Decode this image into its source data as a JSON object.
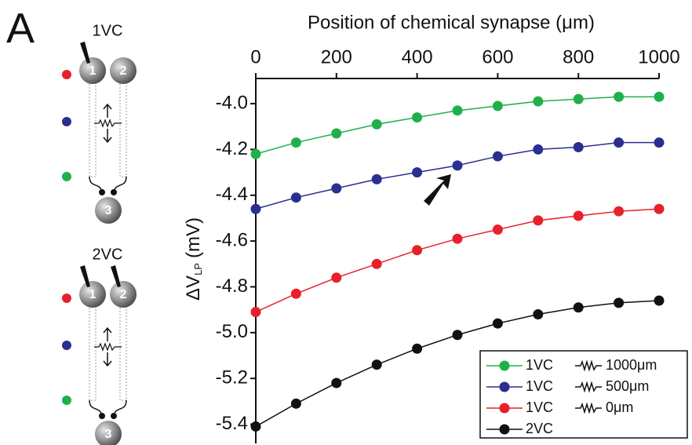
{
  "panel_label": "A",
  "diagrams": [
    {
      "label": "1VC",
      "neurons": [
        "1",
        "2",
        "3"
      ]
    },
    {
      "label": "2VC",
      "neurons": [
        "1",
        "2",
        "3"
      ]
    }
  ],
  "chart_data": {
    "type": "line",
    "title": "Position of chemical synapse (μm)",
    "y_label": {
      "main": "ΔV",
      "sub": "LP",
      "unit": "(mV)"
    },
    "x": [
      0,
      100,
      200,
      300,
      400,
      500,
      600,
      700,
      800,
      900,
      1000
    ],
    "series": [
      {
        "name": "1VC",
        "color": "#1fb04b",
        "values": [
          -4.22,
          -4.17,
          -4.13,
          -4.09,
          -4.06,
          -4.03,
          -4.01,
          -3.99,
          -3.98,
          -3.97,
          -3.97
        ]
      },
      {
        "name": "1VC",
        "color": "#2b2f8f",
        "values": [
          -4.46,
          -4.41,
          -4.37,
          -4.33,
          -4.3,
          -4.27,
          -4.23,
          -4.2,
          -4.19,
          -4.17,
          -4.17
        ]
      },
      {
        "name": "1VC",
        "color": "#e8202a",
        "values": [
          -4.91,
          -4.83,
          -4.76,
          -4.7,
          -4.64,
          -4.59,
          -4.55,
          -4.51,
          -4.49,
          -4.47,
          -4.46
        ]
      },
      {
        "name": "2VC",
        "color": "#111111",
        "values": [
          -5.41,
          -5.31,
          -5.22,
          -5.14,
          -5.07,
          -5.01,
          -4.96,
          -4.92,
          -4.89,
          -4.87,
          -4.86
        ]
      }
    ],
    "legend_extra": [
      "1000μm",
      "500μm",
      "0μm"
    ],
    "legend": "lower right",
    "xlim": [
      0,
      1000
    ],
    "xticks": [
      0,
      200,
      400,
      600,
      800,
      1000
    ],
    "ylim": [
      -5.46,
      -3.89
    ],
    "yticks": [
      {
        "value": -4.0,
        "label": "-4.0"
      },
      -4.2,
      -4.4,
      -4.6,
      -4.8,
      {
        "value": -5.0,
        "label": "-5.0"
      },
      -5.2,
      -5.4
    ]
  }
}
